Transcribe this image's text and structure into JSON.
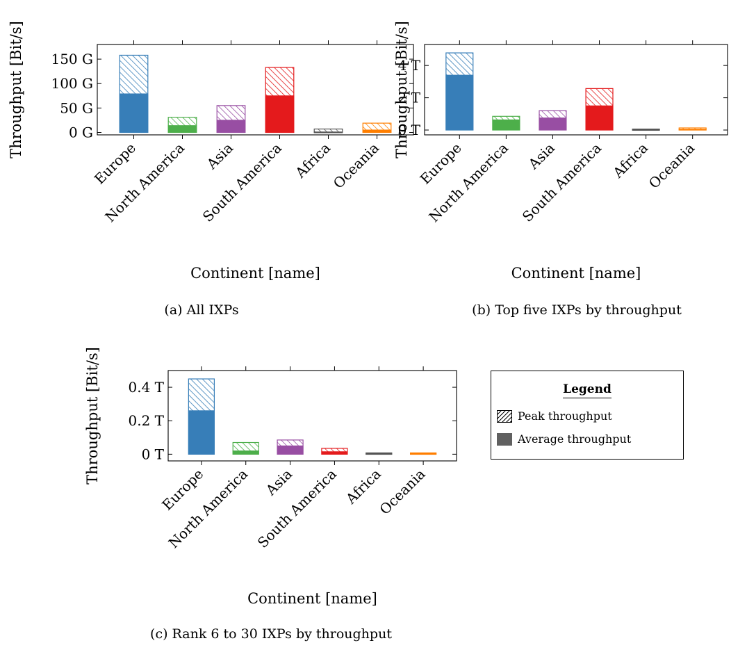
{
  "colors": {
    "Europe": "#377eb8",
    "North America": "#4daf4a",
    "Asia": "#984ea3",
    "South America": "#e41a1c",
    "Africa": "#555555",
    "Oceania": "#ff7f00"
  },
  "legend": {
    "title": "Legend",
    "peak_label": "Peak throughput",
    "average_label": "Average throughput"
  },
  "chart_data": [
    {
      "type": "bar",
      "caption": "(a) All IXPs",
      "xlabel": "Continent [name]",
      "ylabel": "Throughput [Bit/s]",
      "categories": [
        "Europe",
        "North America",
        "Asia",
        "South America",
        "Africa",
        "Oceania"
      ],
      "ylim": [
        -5,
        180
      ],
      "ytick_values": [
        0,
        50,
        100,
        150
      ],
      "ytick_labels": [
        "0 G",
        "50 G",
        "100 G",
        "150 G"
      ],
      "series": [
        {
          "name": "Average throughput",
          "values": [
            79,
            14,
            25,
            75,
            1,
            5
          ]
        },
        {
          "name": "Peak throughput",
          "values": [
            158,
            31,
            55,
            133,
            7,
            19
          ]
        }
      ]
    },
    {
      "type": "bar",
      "caption": "(b) Top five IXPs by throughput",
      "xlabel": "Continent [name]",
      "ylabel": "Throughput [Bit/s]",
      "categories": [
        "Europe",
        "North America",
        "Asia",
        "South America",
        "Africa",
        "Oceania"
      ],
      "ylim": [
        -0.3,
        5.3
      ],
      "ytick_values": [
        0,
        2,
        4
      ],
      "ytick_labels": [
        "0 T",
        "2 T",
        "4 T"
      ],
      "series": [
        {
          "name": "Average throughput",
          "values": [
            3.4,
            0.63,
            0.75,
            1.5,
            0.03,
            0.05
          ]
        },
        {
          "name": "Peak throughput",
          "values": [
            4.78,
            0.85,
            1.2,
            2.57,
            0.06,
            0.13
          ]
        }
      ]
    },
    {
      "type": "bar",
      "caption": "(c) Rank 6 to 30 IXPs by throughput",
      "xlabel": "Continent [name]",
      "ylabel": "Throughput [Bit/s]",
      "categories": [
        "Europe",
        "North America",
        "Asia",
        "South America",
        "Africa",
        "Oceania"
      ],
      "ylim": [
        -0.04,
        0.5
      ],
      "ytick_values": [
        0,
        0.2,
        0.4
      ],
      "ytick_labels": [
        "0 T",
        "0.2 T",
        "0.4 T"
      ],
      "series": [
        {
          "name": "Average throughput",
          "values": [
            0.26,
            0.02,
            0.05,
            0.015,
            0.004,
            0.004
          ]
        },
        {
          "name": "Peak throughput",
          "values": [
            0.45,
            0.07,
            0.085,
            0.035,
            0.008,
            0.008
          ]
        }
      ]
    }
  ]
}
